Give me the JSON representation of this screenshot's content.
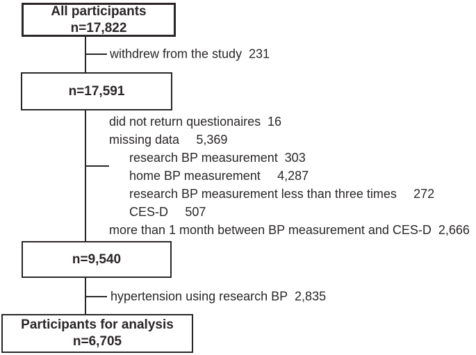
{
  "colors": {
    "ink": "#2a2627",
    "background": "#ffffff"
  },
  "flow": {
    "box1": {
      "title": "All participants",
      "n": "n=17,822"
    },
    "branch1": {
      "label": "withdrew from the study",
      "value": "231",
      "gap": "sm"
    },
    "box2": {
      "n": "n=17,591"
    },
    "exclusions": [
      {
        "label": "did not return questionaires",
        "value": "16",
        "indent": 0,
        "gap": "sm"
      },
      {
        "label": "missing data",
        "value": "5,369",
        "indent": 0,
        "gap": "lg"
      },
      {
        "label": "research BP measurement",
        "value": "303",
        "indent": 1,
        "gap": "sm"
      },
      {
        "label": "home BP measurement",
        "value": "4,287",
        "indent": 1,
        "gap": "lg"
      },
      {
        "label": "research BP measurement less than three times",
        "value": "272",
        "indent": 1,
        "gap": "lg"
      },
      {
        "label": "CES-D",
        "value": "507",
        "indent": 1,
        "gap": "lg"
      },
      {
        "label": "more than 1 month between BP measurement and CES-D",
        "value": "2,666",
        "indent": 0,
        "gap": "sm"
      }
    ],
    "box3": {
      "n": "n=9,540"
    },
    "branch2": {
      "label": "hypertension using research BP",
      "value": "2,835",
      "gap": "sm"
    },
    "box4": {
      "title": "Participants for analysis",
      "n": "n=6,705"
    }
  }
}
